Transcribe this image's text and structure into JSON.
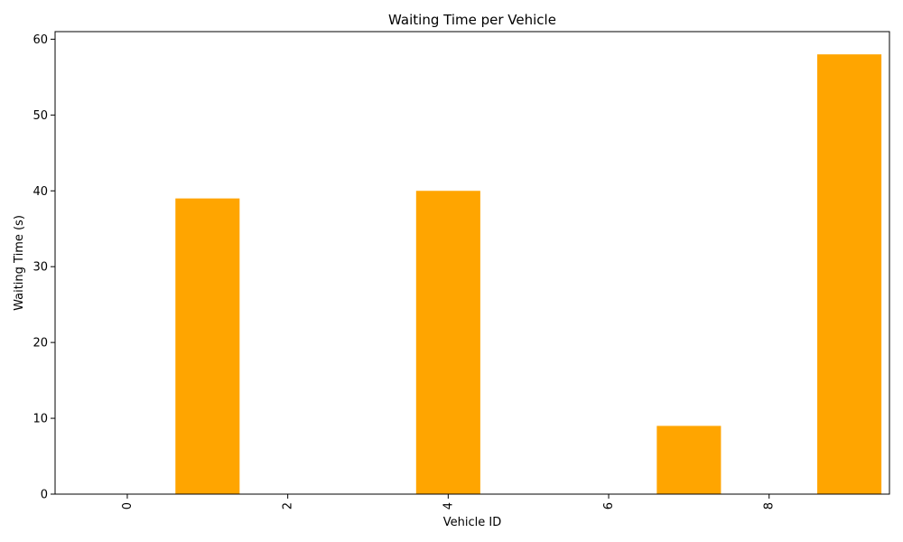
{
  "chart_data": {
    "type": "bar",
    "title": "Waiting Time per Vehicle",
    "xlabel": "Vehicle ID",
    "ylabel": "Waiting Time (s)",
    "x": [
      0,
      1,
      2,
      3,
      4,
      5,
      6,
      7,
      8,
      9
    ],
    "values": [
      0,
      39,
      0,
      0,
      40,
      0,
      0,
      9,
      0,
      58
    ],
    "xlim": [
      -0.9,
      9.5
    ],
    "ylim": [
      0,
      61
    ],
    "xticks": [
      0,
      2,
      4,
      6,
      8
    ],
    "yticks": [
      0,
      10,
      20,
      30,
      40,
      50,
      60
    ],
    "bar_color": "#ffa500",
    "grid": false,
    "legend": "none",
    "xtick_rotation": "vertical"
  }
}
